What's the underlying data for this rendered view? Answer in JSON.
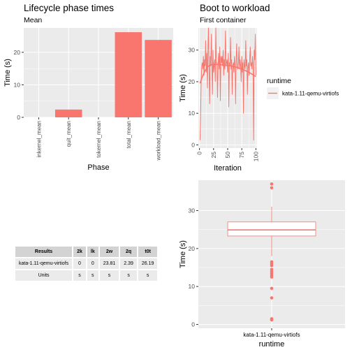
{
  "chart_data": [
    {
      "type": "bar",
      "title": "Lifecycle phase times",
      "subtitle": "Mean",
      "xlabel": "Phase",
      "ylabel": "Time (s)",
      "categories": [
        "inkernel_mean",
        "quit_mean",
        "tokernel_mean",
        "total_mean",
        "workload_mean"
      ],
      "values": [
        0,
        2.39,
        0,
        26.19,
        23.81
      ],
      "ylim": [
        0,
        27.5
      ],
      "yticks": [
        0,
        10,
        20
      ],
      "bar_color": "#f8766d",
      "grid": true
    },
    {
      "type": "line",
      "title": "Boot to workload",
      "subtitle": "First container",
      "xlabel": "Iteration",
      "ylabel": "Time (s)",
      "xlim": [
        -2,
        102
      ],
      "ylim": [
        -1,
        37
      ],
      "xticks": [
        0,
        25,
        50,
        75,
        100
      ],
      "yticks": [
        0,
        10,
        20,
        30
      ],
      "legend_title": "runtime",
      "legend_position": "right",
      "grid": true,
      "series": [
        {
          "name": "kata-1.11-qemu-virtiofs",
          "color": "#f8766d",
          "x": [
            1,
            2,
            3,
            4,
            5,
            6,
            7,
            8,
            9,
            10,
            11,
            12,
            13,
            14,
            15,
            16,
            17,
            18,
            19,
            20,
            21,
            22,
            23,
            24,
            25,
            26,
            27,
            28,
            29,
            30,
            31,
            32,
            33,
            34,
            35,
            36,
            37,
            38,
            39,
            40,
            41,
            42,
            43,
            44,
            45,
            46,
            47,
            48,
            49,
            50,
            51,
            52,
            53,
            54,
            55,
            56,
            57,
            58,
            59,
            60,
            61,
            62,
            63,
            64,
            65,
            66,
            67,
            68,
            69,
            70,
            71,
            72,
            73,
            74,
            75,
            76,
            77,
            78,
            79,
            80,
            81,
            82,
            83,
            84,
            85,
            86,
            87,
            88,
            89,
            90,
            91,
            92,
            93,
            94,
            95,
            96,
            97,
            98,
            99,
            100
          ],
          "values": [
            1.5,
            9.5,
            20,
            25,
            26,
            24,
            28,
            22,
            27,
            25,
            33,
            23,
            29,
            18,
            30,
            37,
            24,
            13,
            28,
            25,
            35,
            26,
            16,
            30,
            23,
            25,
            27,
            20,
            37,
            26,
            26,
            15,
            25,
            29,
            24,
            31,
            14,
            28,
            26,
            28,
            25,
            30,
            22,
            27,
            24,
            36,
            25,
            26,
            27,
            23,
            29,
            12,
            26,
            25,
            34,
            24,
            27,
            16,
            25,
            26,
            23,
            28,
            25,
            13,
            27,
            32,
            25,
            24,
            26,
            31,
            24,
            27,
            25,
            20,
            28,
            23,
            26,
            10,
            27,
            25,
            24,
            33,
            25,
            27,
            16,
            25,
            26,
            22,
            27,
            31,
            25,
            26,
            24,
            28,
            25,
            1.5,
            30,
            27,
            35,
            22
          ]
        },
        {
          "name": "smooth",
          "color": "#f8766d",
          "x": [
            1,
            5,
            10,
            15,
            20,
            25,
            30,
            35,
            40,
            45,
            50,
            55,
            60,
            65,
            70,
            75,
            80,
            85,
            90,
            95,
            100
          ],
          "values": [
            19.5,
            21.5,
            23.5,
            24.8,
            25.3,
            25.5,
            25.5,
            25.4,
            25.3,
            25.2,
            25.1,
            25.0,
            24.8,
            24.6,
            24.3,
            24.0,
            23.6,
            23.2,
            22.7,
            22.2,
            21.6
          ]
        }
      ]
    },
    {
      "type": "table",
      "columns": [
        "Results",
        "2k",
        "lk",
        "2w",
        "2q",
        "t0t"
      ],
      "rows": [
        [
          "kata-1.11-qemu-virtiofs",
          "0",
          "0",
          "23.81",
          "2.39",
          "26.19"
        ],
        [
          "Units",
          "s",
          "s",
          "s",
          "s",
          "s"
        ]
      ]
    },
    {
      "type": "box",
      "xlabel": "runtime",
      "ylabel": "Time (s)",
      "categories": [
        "kata-1.11-qemu-virtiofs"
      ],
      "ylim": [
        -1,
        38
      ],
      "yticks": [
        0,
        10,
        20,
        30
      ],
      "color": "#f8766d",
      "grid": true,
      "box": {
        "lower_whisker": 18,
        "q1": 23.3,
        "median": 24.9,
        "q3": 27,
        "upper_whisker": 31
      },
      "outliers": [
        37,
        36,
        16.5,
        16,
        15.5,
        14.5,
        14,
        13.5,
        13,
        12.5,
        9.5,
        7,
        1.5,
        1.2
      ]
    }
  ]
}
